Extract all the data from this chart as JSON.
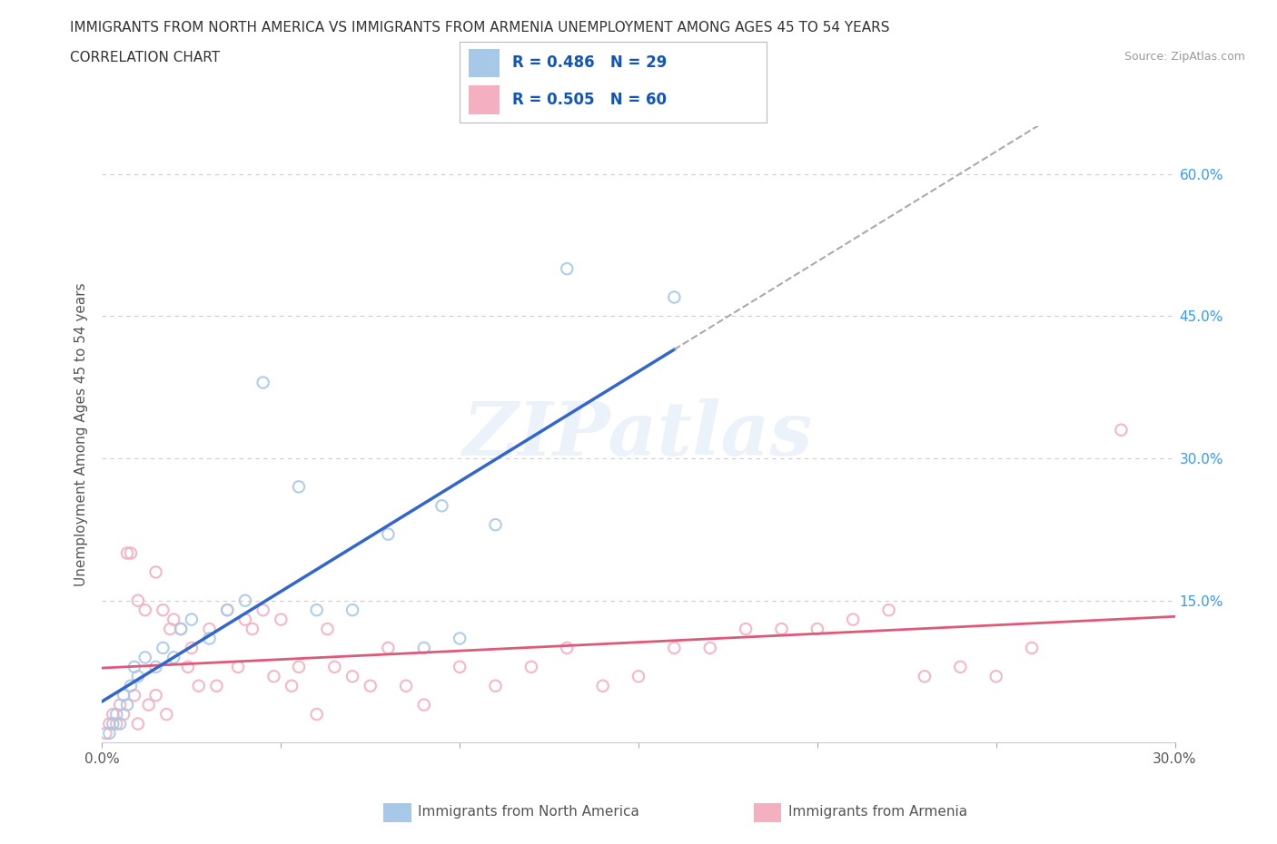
{
  "title_line1": "IMMIGRANTS FROM NORTH AMERICA VS IMMIGRANTS FROM ARMENIA UNEMPLOYMENT AMONG AGES 45 TO 54 YEARS",
  "title_line2": "CORRELATION CHART",
  "source": "Source: ZipAtlas.com",
  "ylabel": "Unemployment Among Ages 45 to 54 years",
  "xlim": [
    0.0,
    0.3
  ],
  "ylim": [
    0.0,
    0.65
  ],
  "xticks": [
    0.0,
    0.05,
    0.1,
    0.15,
    0.2,
    0.25,
    0.3
  ],
  "xticklabels": [
    "0.0%",
    "",
    "",
    "",
    "",
    "",
    "30.0%"
  ],
  "ytick_positions": [
    0.0,
    0.15,
    0.3,
    0.45,
    0.6
  ],
  "ytick_labels_right": [
    "",
    "15.0%",
    "30.0%",
    "45.0%",
    "60.0%"
  ],
  "R_north_america": 0.486,
  "N_north_america": 29,
  "R_armenia": 0.505,
  "N_armenia": 60,
  "color_north_america": "#a8c8e8",
  "color_armenia": "#f4b0c0",
  "trend_color_north_america": "#3366cc",
  "trend_color_armenia": "#e05878",
  "watermark": "ZIPatlas",
  "north_america_x": [
    0.002,
    0.003,
    0.004,
    0.005,
    0.006,
    0.007,
    0.008,
    0.009,
    0.01,
    0.012,
    0.015,
    0.017,
    0.02,
    0.022,
    0.025,
    0.03,
    0.035,
    0.04,
    0.045,
    0.055,
    0.06,
    0.07,
    0.08,
    0.09,
    0.095,
    0.1,
    0.11,
    0.13,
    0.16
  ],
  "north_america_y": [
    0.01,
    0.02,
    0.03,
    0.02,
    0.05,
    0.04,
    0.06,
    0.08,
    0.07,
    0.09,
    0.08,
    0.1,
    0.09,
    0.12,
    0.13,
    0.11,
    0.14,
    0.15,
    0.38,
    0.27,
    0.14,
    0.14,
    0.22,
    0.1,
    0.25,
    0.11,
    0.23,
    0.5,
    0.47
  ],
  "armenia_x": [
    0.001,
    0.002,
    0.003,
    0.004,
    0.005,
    0.006,
    0.007,
    0.008,
    0.009,
    0.01,
    0.01,
    0.012,
    0.013,
    0.015,
    0.015,
    0.017,
    0.018,
    0.019,
    0.02,
    0.022,
    0.024,
    0.025,
    0.027,
    0.03,
    0.032,
    0.035,
    0.038,
    0.04,
    0.042,
    0.045,
    0.048,
    0.05,
    0.053,
    0.055,
    0.06,
    0.063,
    0.065,
    0.07,
    0.075,
    0.08,
    0.085,
    0.09,
    0.1,
    0.11,
    0.12,
    0.13,
    0.14,
    0.15,
    0.16,
    0.17,
    0.18,
    0.19,
    0.2,
    0.21,
    0.22,
    0.23,
    0.24,
    0.25,
    0.26,
    0.285
  ],
  "armenia_y": [
    0.01,
    0.02,
    0.03,
    0.02,
    0.04,
    0.03,
    0.2,
    0.2,
    0.05,
    0.15,
    0.02,
    0.14,
    0.04,
    0.18,
    0.05,
    0.14,
    0.03,
    0.12,
    0.13,
    0.12,
    0.08,
    0.1,
    0.06,
    0.12,
    0.06,
    0.14,
    0.08,
    0.13,
    0.12,
    0.14,
    0.07,
    0.13,
    0.06,
    0.08,
    0.03,
    0.12,
    0.08,
    0.07,
    0.06,
    0.1,
    0.06,
    0.04,
    0.08,
    0.06,
    0.08,
    0.1,
    0.06,
    0.07,
    0.1,
    0.1,
    0.12,
    0.12,
    0.12,
    0.13,
    0.14,
    0.07,
    0.08,
    0.07,
    0.1,
    0.33
  ],
  "background_color": "#ffffff",
  "grid_color": "#cccccc"
}
